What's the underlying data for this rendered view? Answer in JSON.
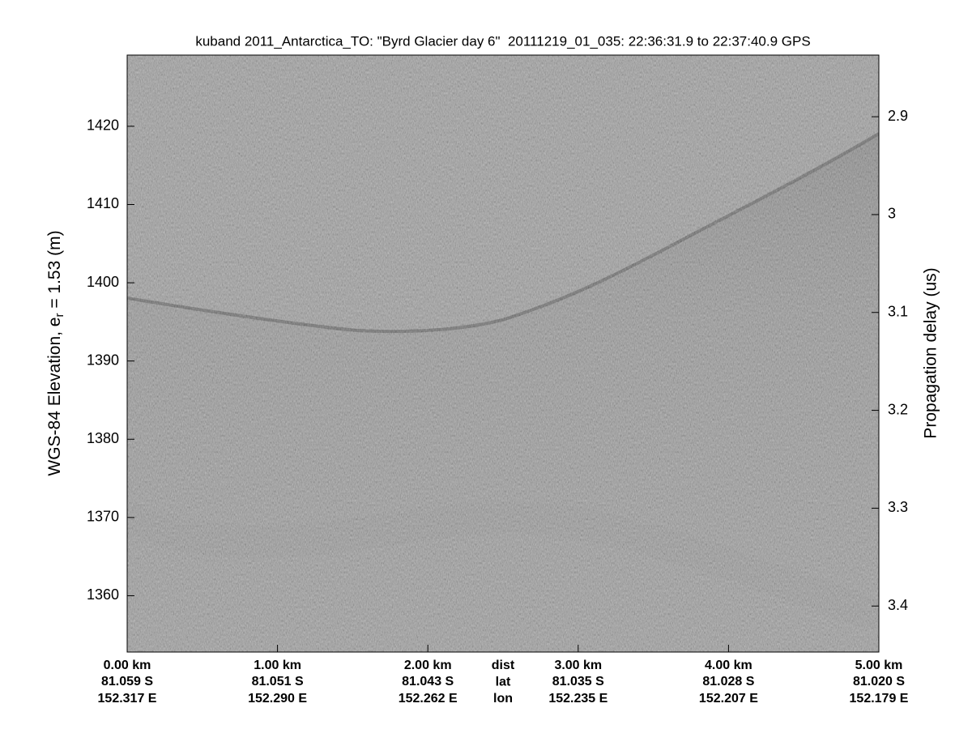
{
  "chart_data": {
    "type": "echogram",
    "title": "kuband 2011_Antarctica_TO: \"Byrd Glacier day 6\"  20111219_01_035: 22:36:31.9 to 22:37:40.9 GPS",
    "ylabel": "WGS-84 Elevation, e",
    "ylabel_sub": "r",
    "ylabel_rest": " = 1.53 (m)",
    "y2label": "Propagation delay (us)",
    "ylim": [
      1352.8,
      1429.1
    ],
    "yticks": [
      1360,
      1370,
      1380,
      1390,
      1400,
      1410,
      1420
    ],
    "y2lim": [
      3.447,
      2.837
    ],
    "y2ticks": [
      2.9,
      3,
      3.1,
      3.2,
      3.3,
      3.4
    ],
    "xlim": [
      0,
      5
    ],
    "xticks": [
      {
        "value": 0,
        "label": "0.00 km"
      },
      {
        "value": 1,
        "label": "1.00 km"
      },
      {
        "value": 2,
        "label": "2.00 km"
      },
      {
        "value": 3,
        "label": "3.00 km"
      },
      {
        "value": 4,
        "label": "4.00 km"
      },
      {
        "value": 5,
        "label": "5.00 km"
      }
    ],
    "lat_labels": [
      "81.059 S",
      "81.051 S",
      "81.043 S",
      "81.035 S",
      "81.028 S",
      "81.020 S"
    ],
    "lon_labels": [
      "152.317 E",
      "152.290 E",
      "152.262 E",
      "152.235 E",
      "152.207 E",
      "152.179 E"
    ],
    "row_labels": [
      "dist",
      "lat",
      "lon"
    ]
  }
}
